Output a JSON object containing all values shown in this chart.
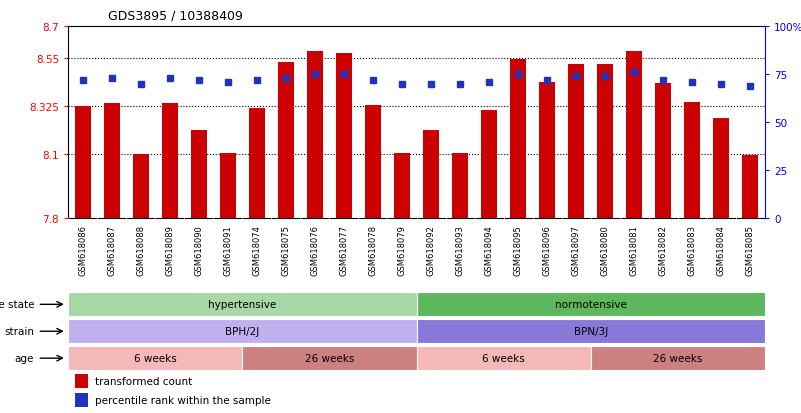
{
  "title": "GDS3895 / 10388409",
  "samples": [
    "GSM618086",
    "GSM618087",
    "GSM618088",
    "GSM618089",
    "GSM618090",
    "GSM618091",
    "GSM618074",
    "GSM618075",
    "GSM618076",
    "GSM618077",
    "GSM618078",
    "GSM618079",
    "GSM618092",
    "GSM618093",
    "GSM618094",
    "GSM618095",
    "GSM618096",
    "GSM618097",
    "GSM618080",
    "GSM618081",
    "GSM618082",
    "GSM618083",
    "GSM618084",
    "GSM618085"
  ],
  "bar_values": [
    8.325,
    8.34,
    8.1,
    8.34,
    8.215,
    8.105,
    8.315,
    8.53,
    8.585,
    8.575,
    8.33,
    8.105,
    8.215,
    8.105,
    8.305,
    8.545,
    8.44,
    8.52,
    8.52,
    8.585,
    8.435,
    8.345,
    8.27,
    8.095
  ],
  "percentile_values": [
    72,
    73,
    70,
    73,
    72,
    71,
    72,
    73,
    75,
    75,
    72,
    70,
    70,
    70,
    71,
    75,
    72,
    74,
    74,
    76,
    72,
    71,
    70,
    69
  ],
  "ylim_left": [
    7.8,
    8.7
  ],
  "ylim_right": [
    0,
    100
  ],
  "yticks_left": [
    7.8,
    8.1,
    8.325,
    8.55,
    8.7
  ],
  "ytick_labels_left": [
    "7.8",
    "8.1",
    "8.325",
    "8.55",
    "8.7"
  ],
  "yticks_right": [
    0,
    25,
    50,
    75,
    100
  ],
  "ytick_labels_right": [
    "0",
    "25",
    "50",
    "75",
    "100%"
  ],
  "bar_color": "#CC0000",
  "percentile_color": "#2233BB",
  "disease_hypertensive": "hypertensive",
  "disease_normotensive": "normotensive",
  "strain_bph": "BPH/2J",
  "strain_bpn": "BPN/3J",
  "age_groups": [
    "6 weeks",
    "26 weeks",
    "6 weeks",
    "26 weeks"
  ],
  "disease_color_hyp": "#a8d8a8",
  "disease_color_nor": "#5db85d",
  "strain_color_bph": "#c0b0f0",
  "strain_color_bpn": "#8878d8",
  "age_color_light": "#f5b8b8",
  "age_color_dark": "#cd8080",
  "legend_bar": "transformed count",
  "legend_pct": "percentile rank within the sample"
}
